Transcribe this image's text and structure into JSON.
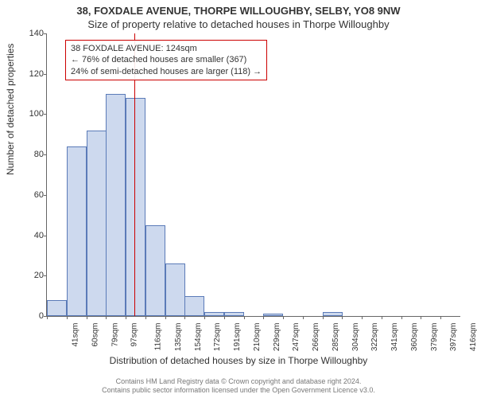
{
  "titles": {
    "main": "38, FOXDALE AVENUE, THORPE WILLOUGHBY, SELBY, YO8 9NW",
    "sub": "Size of property relative to detached houses in Thorpe Willoughby",
    "xaxis": "Distribution of detached houses by size in Thorpe Willoughby",
    "yaxis": "Number of detached properties"
  },
  "annotation": {
    "line1": "38 FOXDALE AVENUE: 124sqm",
    "line2": "← 76% of detached houses are smaller (367)",
    "line3": "24% of semi-detached houses are larger (118) →"
  },
  "credits": {
    "line1": "Contains HM Land Registry data © Crown copyright and database right 2024.",
    "line2": "Contains public sector information licensed under the Open Government Licence v3.0."
  },
  "chart": {
    "type": "bar",
    "bar_fill": "#cdd9ee",
    "bar_stroke": "#5b7bb8",
    "highlight_color": "#cc0000",
    "highlight_x": 124,
    "background_color": "#ffffff",
    "ylim": [
      0,
      140
    ],
    "ytick_step": 20,
    "xticks": [
      41,
      60,
      79,
      97,
      116,
      135,
      154,
      172,
      191,
      210,
      229,
      247,
      266,
      285,
      304,
      322,
      341,
      360,
      379,
      397,
      416
    ],
    "xtick_suffix": "sqm",
    "xlim": [
      41,
      435
    ],
    "bars": [
      {
        "x": 41,
        "v": 8
      },
      {
        "x": 60,
        "v": 84
      },
      {
        "x": 79,
        "v": 92
      },
      {
        "x": 97,
        "v": 110
      },
      {
        "x": 116,
        "v": 108
      },
      {
        "x": 135,
        "v": 45
      },
      {
        "x": 154,
        "v": 26
      },
      {
        "x": 172,
        "v": 10
      },
      {
        "x": 191,
        "v": 2
      },
      {
        "x": 210,
        "v": 2
      },
      {
        "x": 229,
        "v": 0
      },
      {
        "x": 247,
        "v": 1
      },
      {
        "x": 266,
        "v": 0
      },
      {
        "x": 285,
        "v": 0
      },
      {
        "x": 304,
        "v": 2
      },
      {
        "x": 322,
        "v": 0
      },
      {
        "x": 341,
        "v": 0
      },
      {
        "x": 360,
        "v": 0
      },
      {
        "x": 379,
        "v": 0
      },
      {
        "x": 397,
        "v": 0
      },
      {
        "x": 416,
        "v": 0
      }
    ],
    "bar_width_units": 19
  }
}
